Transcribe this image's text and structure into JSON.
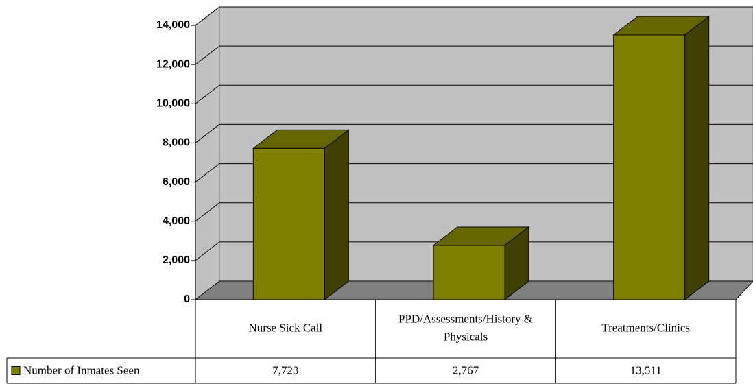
{
  "chart_data": {
    "type": "bar3d",
    "categories": [
      "Nurse Sick Call",
      "PPD/Assessments/History & Physicals",
      "Treatments/Clinics"
    ],
    "series": [
      {
        "name": "Number of Inmates Seen",
        "color": "#808000",
        "values": [
          7723,
          2767,
          13511
        ],
        "value_labels": [
          "7,723",
          "2,767",
          "13,511"
        ]
      }
    ],
    "ylim": [
      0,
      14000
    ],
    "yticks": [
      0,
      {
        "value": 2000,
        "label": "2,000"
      },
      {
        "value": 4000,
        "label": "4,000"
      },
      {
        "value": 6000,
        "label": "6,000"
      },
      {
        "value": 8000,
        "label": "8,000"
      },
      {
        "value": 10000,
        "label": "10,000"
      },
      {
        "value": 12000,
        "label": "12,000"
      },
      {
        "value": 14000,
        "label": "14,000"
      }
    ],
    "grid": true,
    "legend": "data-table"
  }
}
